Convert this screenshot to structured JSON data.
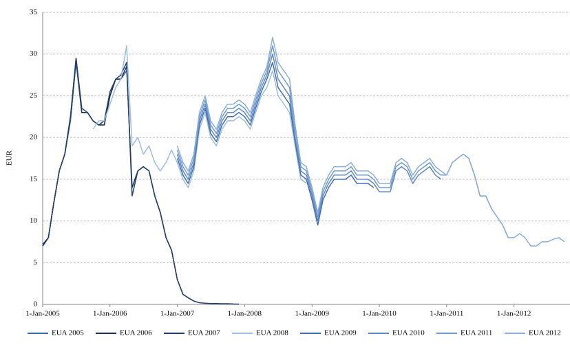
{
  "chart_data": {
    "type": "line",
    "y_label": "EUR",
    "x": [
      "2005-01-01",
      "2005-02-01",
      "2005-03-01",
      "2005-04-01",
      "2005-05-01",
      "2005-06-01",
      "2005-07-01",
      "2005-08-01",
      "2005-09-01",
      "2005-10-01",
      "2005-11-01",
      "2005-12-01",
      "2006-01-01",
      "2006-02-01",
      "2006-03-01",
      "2006-04-01",
      "2006-05-01",
      "2006-06-01",
      "2006-07-01",
      "2006-08-01",
      "2006-09-01",
      "2006-10-01",
      "2006-11-01",
      "2006-12-01",
      "2007-01-01",
      "2007-02-01",
      "2007-03-01",
      "2007-04-01",
      "2007-05-01",
      "2007-06-01",
      "2007-07-01",
      "2007-08-01",
      "2007-09-01",
      "2007-10-01",
      "2007-11-01",
      "2007-12-01",
      "2008-01-01",
      "2008-02-01",
      "2008-03-01",
      "2008-04-01",
      "2008-05-01",
      "2008-06-01",
      "2008-07-01",
      "2008-08-01",
      "2008-09-01",
      "2008-10-01",
      "2008-11-01",
      "2008-12-01",
      "2009-01-01",
      "2009-02-01",
      "2009-03-01",
      "2009-04-01",
      "2009-05-01",
      "2009-06-01",
      "2009-07-01",
      "2009-08-01",
      "2009-09-01",
      "2009-10-01",
      "2009-11-01",
      "2009-12-01",
      "2010-01-01",
      "2010-02-01",
      "2010-03-01",
      "2010-04-01",
      "2010-05-01",
      "2010-06-01",
      "2010-07-01",
      "2010-08-01",
      "2010-09-01",
      "2010-10-01",
      "2010-11-01",
      "2010-12-01",
      "2011-01-01",
      "2011-02-01",
      "2011-03-01",
      "2011-04-01",
      "2011-05-01",
      "2011-06-01",
      "2011-07-01",
      "2011-08-01",
      "2011-09-01",
      "2011-10-01",
      "2011-11-01",
      "2011-12-01",
      "2012-01-01",
      "2012-02-01",
      "2012-03-01",
      "2012-04-01",
      "2012-05-01",
      "2012-06-01",
      "2012-07-01",
      "2012-08-01",
      "2012-09-01",
      "2012-10-01"
    ],
    "xlim": [
      "2005-01-01",
      "2012-10-31"
    ],
    "xticks": [
      {
        "value": "2005-01-01",
        "label": "1-Jan-2005"
      },
      {
        "value": "2006-01-01",
        "label": "1-Jan-2006"
      },
      {
        "value": "2007-01-01",
        "label": "1-Jan-2007"
      },
      {
        "value": "2008-01-01",
        "label": "1-Jan-2008"
      },
      {
        "value": "2009-01-01",
        "label": "1-Jan-2009"
      },
      {
        "value": "2010-01-01",
        "label": "1-Jan-2010"
      },
      {
        "value": "2011-01-01",
        "label": "1-Jan-2011"
      },
      {
        "value": "2012-01-01",
        "label": "1-Jan-2012"
      }
    ],
    "ylim": [
      0,
      35
    ],
    "yticks": [
      0,
      5,
      10,
      15,
      20,
      25,
      30,
      35
    ],
    "grid": true,
    "series": [
      {
        "name": "EUA 2005",
        "color": "#3a6aa8",
        "values": [
          7,
          8,
          12,
          16,
          18,
          22,
          29,
          23,
          23,
          22,
          21.5,
          21.5,
          25,
          27,
          27,
          28,
          null,
          null,
          null,
          null,
          null,
          null,
          null,
          null,
          null,
          null,
          null,
          null,
          null,
          null,
          null,
          null,
          null,
          null,
          null,
          null,
          null,
          null,
          null,
          null,
          null,
          null,
          null,
          null,
          null,
          null,
          null,
          null,
          null,
          null,
          null,
          null,
          null,
          null,
          null,
          null,
          null,
          null,
          null,
          null,
          null,
          null,
          null,
          null,
          null,
          null,
          null,
          null,
          null,
          null,
          null,
          null,
          null,
          null,
          null,
          null,
          null,
          null,
          null,
          null,
          null,
          null,
          null,
          null,
          null,
          null,
          null,
          null,
          null,
          null,
          null,
          null,
          null,
          null
        ]
      },
      {
        "name": "EUA 2006",
        "color": "#1b2f55",
        "values": [
          7,
          8,
          12,
          16,
          18,
          22.5,
          29.5,
          23,
          23,
          22,
          21.5,
          21.5,
          25,
          27,
          27,
          28.5,
          14,
          16,
          16.5,
          16,
          13,
          11,
          8,
          6.5,
          3,
          1.2,
          0.8,
          0.4,
          null,
          null,
          null,
          null,
          null,
          null,
          null,
          null,
          null,
          null,
          null,
          null,
          null,
          null,
          null,
          null,
          null,
          null,
          null,
          null,
          null,
          null,
          null,
          null,
          null,
          null,
          null,
          null,
          null,
          null,
          null,
          null,
          null,
          null,
          null,
          null,
          null,
          null,
          null,
          null,
          null,
          null,
          null,
          null,
          null,
          null,
          null,
          null,
          null,
          null,
          null,
          null,
          null,
          null,
          null,
          null,
          null,
          null,
          null,
          null,
          null,
          null,
          null,
          null,
          null,
          null
        ]
      },
      {
        "name": "EUA 2007",
        "color": "#223f6b",
        "values": [
          7.2,
          8,
          12,
          16,
          18,
          22.5,
          29.5,
          23.5,
          23,
          22,
          21.5,
          22,
          25.5,
          27,
          27.5,
          29,
          13,
          16,
          16.5,
          16,
          13,
          11,
          8,
          6.5,
          3,
          1.2,
          0.8,
          0.4,
          0.2,
          0.15,
          0.1,
          0.1,
          0.08,
          0.08,
          0.05,
          0.03,
          null,
          null,
          null,
          null,
          null,
          null,
          null,
          null,
          null,
          null,
          null,
          null,
          null,
          null,
          null,
          null,
          null,
          null,
          null,
          null,
          null,
          null,
          null,
          null,
          null,
          null,
          null,
          null,
          null,
          null,
          null,
          null,
          null,
          null,
          null,
          null,
          null,
          null,
          null,
          null,
          null,
          null,
          null,
          null,
          null,
          null,
          null,
          null,
          null,
          null,
          null,
          null,
          null,
          null,
          null,
          null,
          null,
          null
        ]
      },
      {
        "name": "EUA 2008",
        "color": "#9dbde2",
        "values": [
          null,
          null,
          null,
          null,
          null,
          null,
          null,
          null,
          null,
          21,
          22,
          22,
          24,
          26,
          27,
          31,
          19,
          20,
          18,
          19,
          17,
          16,
          17,
          18.5,
          17,
          15,
          14,
          16,
          21,
          23,
          20,
          19,
          21,
          22,
          22,
          22.5,
          22,
          21,
          23,
          25,
          26,
          28,
          25,
          24,
          23,
          19,
          15,
          14.5,
          null,
          null,
          null,
          null,
          null,
          null,
          null,
          null,
          null,
          null,
          null,
          null,
          null,
          null,
          null,
          null,
          null,
          null,
          null,
          null,
          null,
          null,
          null,
          null,
          null,
          null,
          null,
          null,
          null,
          null,
          null,
          null,
          null,
          null,
          null,
          null,
          null,
          null,
          null,
          null,
          null,
          null,
          null,
          null,
          null,
          null
        ]
      },
      {
        "name": "EUA 2009",
        "color": "#3f6fb0",
        "values": [
          null,
          null,
          null,
          null,
          null,
          null,
          null,
          null,
          null,
          null,
          null,
          null,
          null,
          null,
          null,
          null,
          null,
          null,
          null,
          null,
          null,
          null,
          null,
          null,
          17.5,
          15.5,
          14.5,
          16.5,
          21.5,
          23.5,
          20.5,
          19.5,
          21.5,
          22.5,
          22.5,
          23,
          22.5,
          21.5,
          23.5,
          25.5,
          27,
          29,
          26,
          25,
          24,
          19.5,
          15.5,
          15,
          12.5,
          9.5,
          12.5,
          14,
          15,
          15,
          15,
          15.5,
          14.5,
          14.5,
          14.5,
          14,
          null,
          null,
          null,
          null,
          null,
          null,
          null,
          null,
          null,
          null,
          null,
          null,
          null,
          null,
          null,
          null,
          null,
          null,
          null,
          null,
          null,
          null,
          null,
          null,
          null,
          null,
          null,
          null,
          null,
          null,
          null,
          null,
          null,
          null
        ]
      },
      {
        "name": "EUA 2010",
        "color": "#5d88c4",
        "values": [
          null,
          null,
          null,
          null,
          null,
          null,
          null,
          null,
          null,
          null,
          null,
          null,
          null,
          null,
          null,
          null,
          null,
          null,
          null,
          null,
          null,
          null,
          null,
          null,
          18,
          16,
          15,
          17,
          22,
          24,
          21,
          20,
          22,
          23,
          23,
          23.5,
          23,
          22,
          24,
          26,
          27.5,
          30,
          27,
          26,
          25,
          20,
          16,
          15.5,
          13,
          10,
          13,
          14.5,
          15.5,
          15.5,
          15.5,
          16,
          15,
          15,
          15,
          14.5,
          13.5,
          13.5,
          13.5,
          16,
          16.5,
          16,
          14.5,
          15.5,
          16,
          16.5,
          15.5,
          15,
          null,
          null,
          null,
          null,
          null,
          null,
          null,
          null,
          null,
          null,
          null,
          null,
          null,
          null,
          null,
          null,
          null,
          null,
          null,
          null,
          null,
          null
        ]
      },
      {
        "name": "EUA 2011",
        "color": "#7099cf",
        "values": [
          null,
          null,
          null,
          null,
          null,
          null,
          null,
          null,
          null,
          null,
          null,
          null,
          null,
          null,
          null,
          null,
          null,
          null,
          null,
          null,
          null,
          null,
          null,
          null,
          18.5,
          16.5,
          15.5,
          17.5,
          22.5,
          24.5,
          21.5,
          20.5,
          22.5,
          23.5,
          23.5,
          24,
          23.5,
          22.5,
          24.5,
          26.5,
          28,
          31,
          28,
          27,
          26,
          21,
          16.5,
          16,
          13.5,
          10.5,
          13.5,
          15,
          16,
          16,
          16,
          16.5,
          15.5,
          15.5,
          15.5,
          15,
          14,
          14,
          14,
          16.5,
          17,
          16.5,
          15,
          16,
          16.5,
          17,
          16,
          15.5,
          15.5,
          17,
          17.5,
          18,
          17.5,
          15.5,
          13,
          13,
          11.5,
          10.5,
          9.5,
          8,
          null,
          null,
          null,
          null,
          null,
          null,
          null,
          null,
          null,
          null
        ]
      },
      {
        "name": "EUA 2012",
        "color": "#8aaed9",
        "values": [
          null,
          null,
          null,
          null,
          null,
          null,
          null,
          null,
          null,
          null,
          null,
          null,
          null,
          null,
          null,
          null,
          null,
          null,
          null,
          null,
          null,
          null,
          null,
          null,
          19,
          17,
          16,
          18,
          23,
          25,
          22,
          21,
          23,
          24,
          24,
          24.5,
          24,
          23,
          25,
          27,
          28.5,
          32,
          29,
          28,
          27,
          21.5,
          17,
          16.5,
          14,
          11,
          14,
          15.5,
          16.5,
          16.5,
          16.5,
          17,
          16,
          16,
          16,
          15.5,
          14.5,
          14.5,
          14.5,
          17,
          17.5,
          17,
          15.5,
          16.5,
          17,
          17.5,
          16.5,
          16,
          15.5,
          17,
          17.5,
          18,
          17.5,
          15.5,
          13,
          13,
          11.5,
          10.5,
          9.5,
          8,
          8,
          8.5,
          8,
          7,
          7,
          7.5,
          7.5,
          7.8,
          8,
          7.5
        ]
      }
    ]
  }
}
